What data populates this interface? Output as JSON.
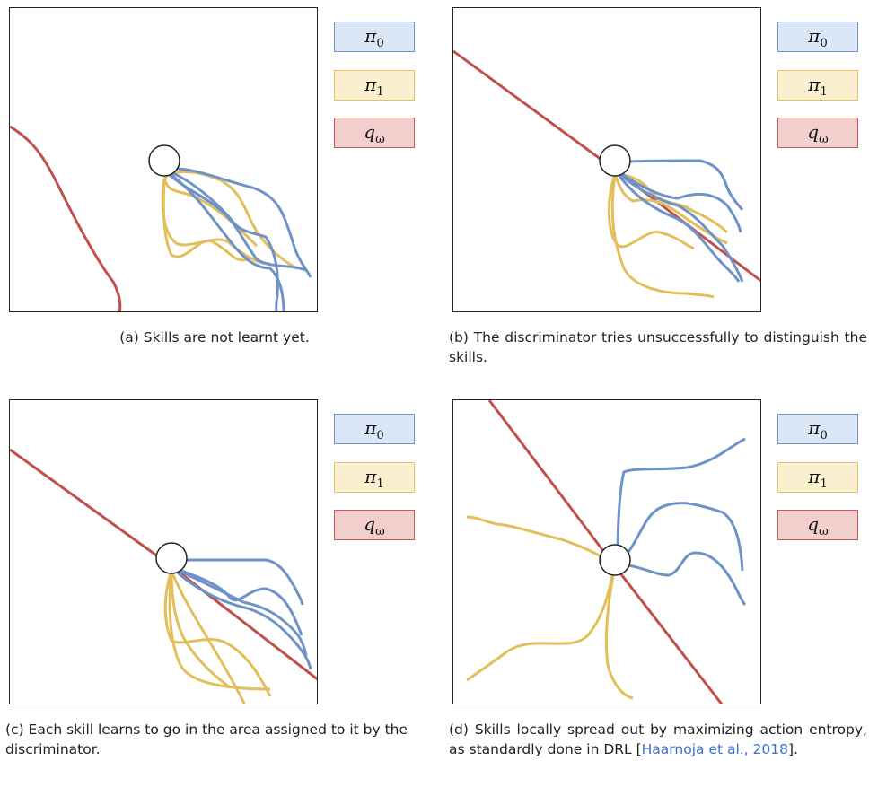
{
  "legend": {
    "items": [
      {
        "base": "π",
        "sub": "0",
        "color": "#6f93c8",
        "fill": "#dbe6f7"
      },
      {
        "base": "q",
        "sub": "ω",
        "color": "#c85a56",
        "fill": "#f2cfcc"
      },
      {
        "base": "π",
        "sub": "1",
        "color": "#e0c36a",
        "fill": "#faf0cf"
      }
    ]
  },
  "colors": {
    "pi0": "#6f93c8",
    "pi1": "#e2bf5b",
    "q_omega": "#c0504d"
  },
  "panels": [
    {
      "caption": "(a) Skills are not learnt yet."
    },
    {
      "caption": "(b) The discriminator tries unsuccessfully to distinguish the skills."
    },
    {
      "caption": "(c) Each skill learns to go in the area assigned to it by the discriminator."
    },
    {
      "caption_pre": "(d) Skills locally spread out by maximizing action entropy, as standardly done in DRL [",
      "citation": "Haarnoja et al., 2018",
      "caption_post": "]."
    }
  ]
}
